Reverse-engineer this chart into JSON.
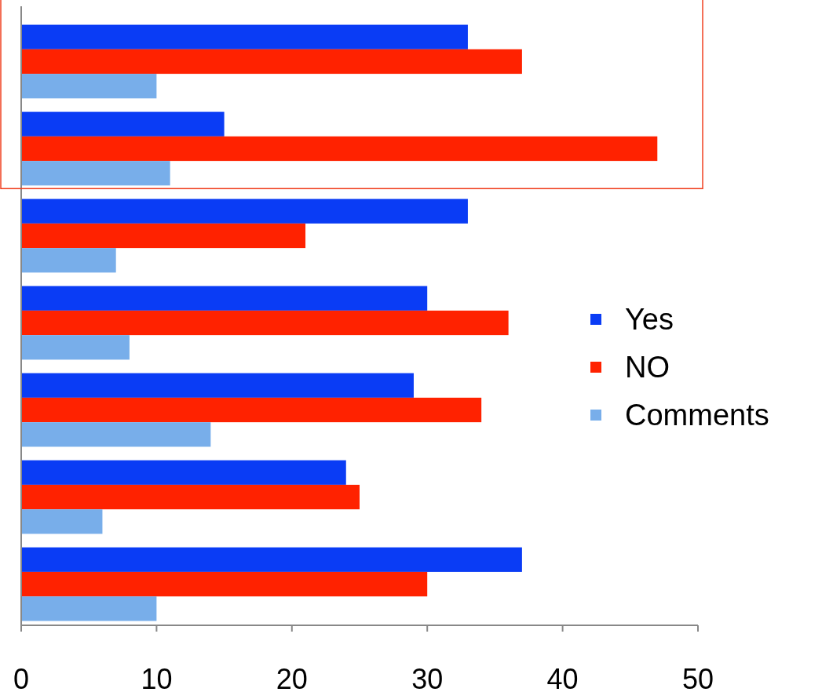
{
  "chart_data": {
    "type": "bar",
    "orientation": "horizontal",
    "categories": [
      null,
      null,
      null,
      null,
      null,
      null,
      null
    ],
    "series": [
      {
        "name": "Yes",
        "color": "#0a3cf5",
        "values": [
          33,
          15,
          33,
          30,
          29,
          24,
          37
        ]
      },
      {
        "name": "NO",
        "color": "#ff2200",
        "values": [
          37,
          47,
          21,
          36,
          34,
          25,
          30
        ]
      },
      {
        "name": "Comments",
        "color": "#78aeea",
        "values": [
          10,
          11,
          7,
          8,
          14,
          6,
          10
        ]
      }
    ],
    "xlim": [
      0,
      50
    ],
    "xticks": [
      0,
      10,
      20,
      30,
      40,
      50
    ],
    "legend": "right"
  }
}
